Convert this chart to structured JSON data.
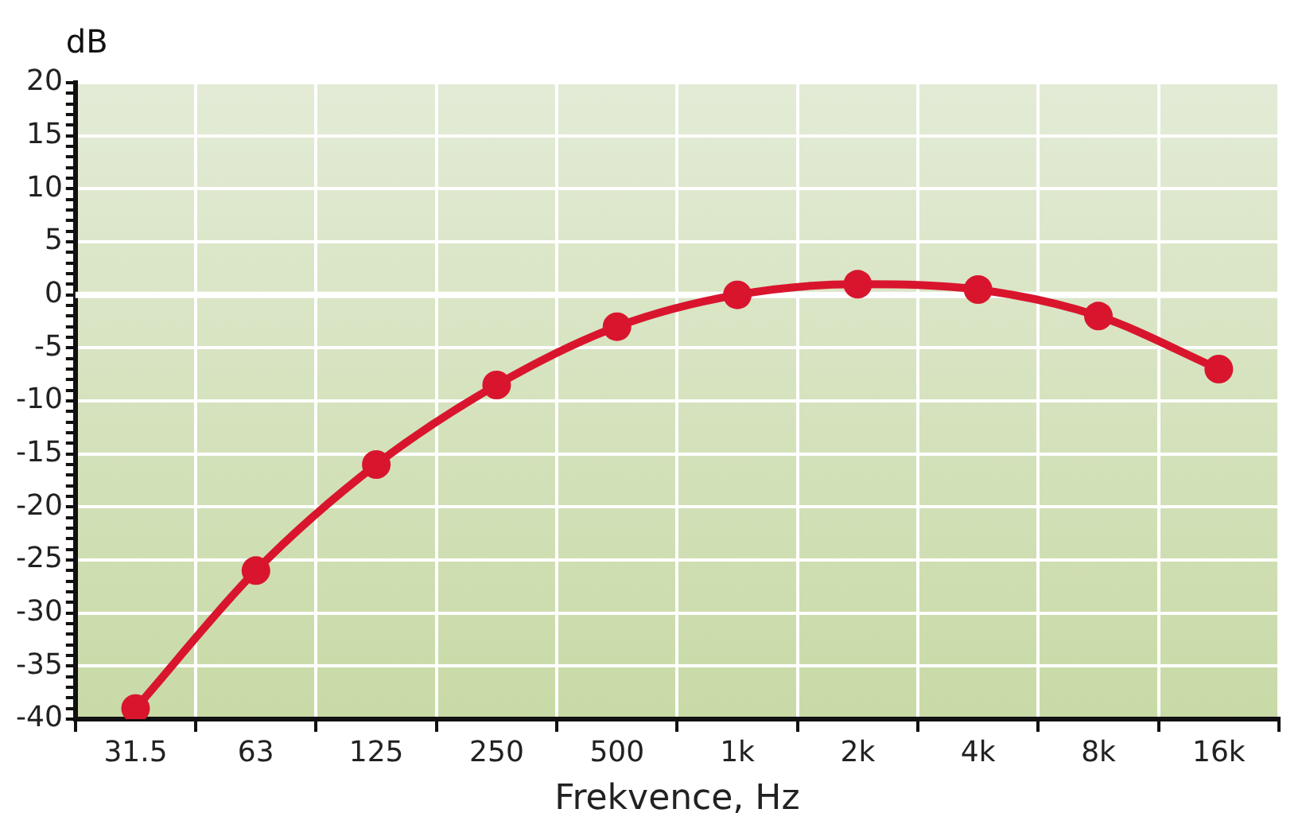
{
  "chart_data": {
    "type": "line",
    "xlabel": "Frekvence, Hz",
    "ylabel": "dB",
    "categories": [
      "31.5",
      "63",
      "125",
      "250",
      "500",
      "1k",
      "2k",
      "4k",
      "8k",
      "16k"
    ],
    "series": [
      {
        "color": "#d9152e",
        "values": [
          -39,
          -26,
          -16,
          -8.5,
          -3,
          0,
          1,
          0.5,
          -2,
          -7
        ]
      }
    ],
    "ylim": [
      -40,
      20
    ],
    "yticks": [
      -40,
      {
        "value": -39,
        "label": null
      },
      {
        "value": -38,
        "label": null
      },
      {
        "value": -37,
        "label": null
      },
      {
        "value": -36,
        "label": null
      },
      -35,
      {
        "value": -34,
        "label": null
      },
      {
        "value": -33,
        "label": null
      },
      {
        "value": -32,
        "label": null
      },
      {
        "value": -31,
        "label": null
      },
      -30,
      {
        "value": -29,
        "label": null
      },
      {
        "value": -28,
        "label": null
      },
      {
        "value": -27,
        "label": null
      },
      {
        "value": -26,
        "label": null
      },
      -25,
      {
        "value": -24,
        "label": null
      },
      {
        "value": -23,
        "label": null
      },
      {
        "value": -22,
        "label": null
      },
      {
        "value": -21,
        "label": null
      },
      -20,
      {
        "value": -19,
        "label": null
      },
      {
        "value": -18,
        "label": null
      },
      {
        "value": -17,
        "label": null
      },
      {
        "value": -16,
        "label": null
      },
      -15,
      {
        "value": -14,
        "label": null
      },
      {
        "value": -13,
        "label": null
      },
      {
        "value": -12,
        "label": null
      },
      {
        "value": -11,
        "label": null
      },
      -10,
      {
        "value": -9,
        "label": null
      },
      {
        "value": -8,
        "label": null
      },
      {
        "value": -7,
        "label": null
      },
      {
        "value": -6,
        "label": null
      },
      -5,
      {
        "value": -4,
        "label": null
      },
      {
        "value": -3,
        "label": null
      },
      {
        "value": -2,
        "label": null
      },
      {
        "value": -1,
        "label": null
      },
      0,
      {
        "value": 1,
        "label": null
      },
      {
        "value": 2,
        "label": null
      },
      {
        "value": 3,
        "label": null
      },
      {
        "value": 4,
        "label": null
      },
      5,
      {
        "value": 6,
        "label": null
      },
      {
        "value": 7,
        "label": null
      },
      {
        "value": 8,
        "label": null
      },
      {
        "value": 9,
        "label": null
      },
      10,
      {
        "value": 11,
        "label": null
      },
      {
        "value": 12,
        "label": null
      },
      {
        "value": 13,
        "label": null
      },
      {
        "value": 14,
        "label": null
      },
      15,
      {
        "value": 16,
        "label": null
      },
      {
        "value": 17,
        "label": null
      },
      {
        "value": 18,
        "label": null
      },
      {
        "value": 19,
        "label": null
      },
      20
    ],
    "ref_lines": [
      {
        "axis": "y",
        "value": 0,
        "color": "#ffffff"
      }
    ],
    "grid": true,
    "legend": false,
    "marker": "circle",
    "line_style": "solid"
  }
}
